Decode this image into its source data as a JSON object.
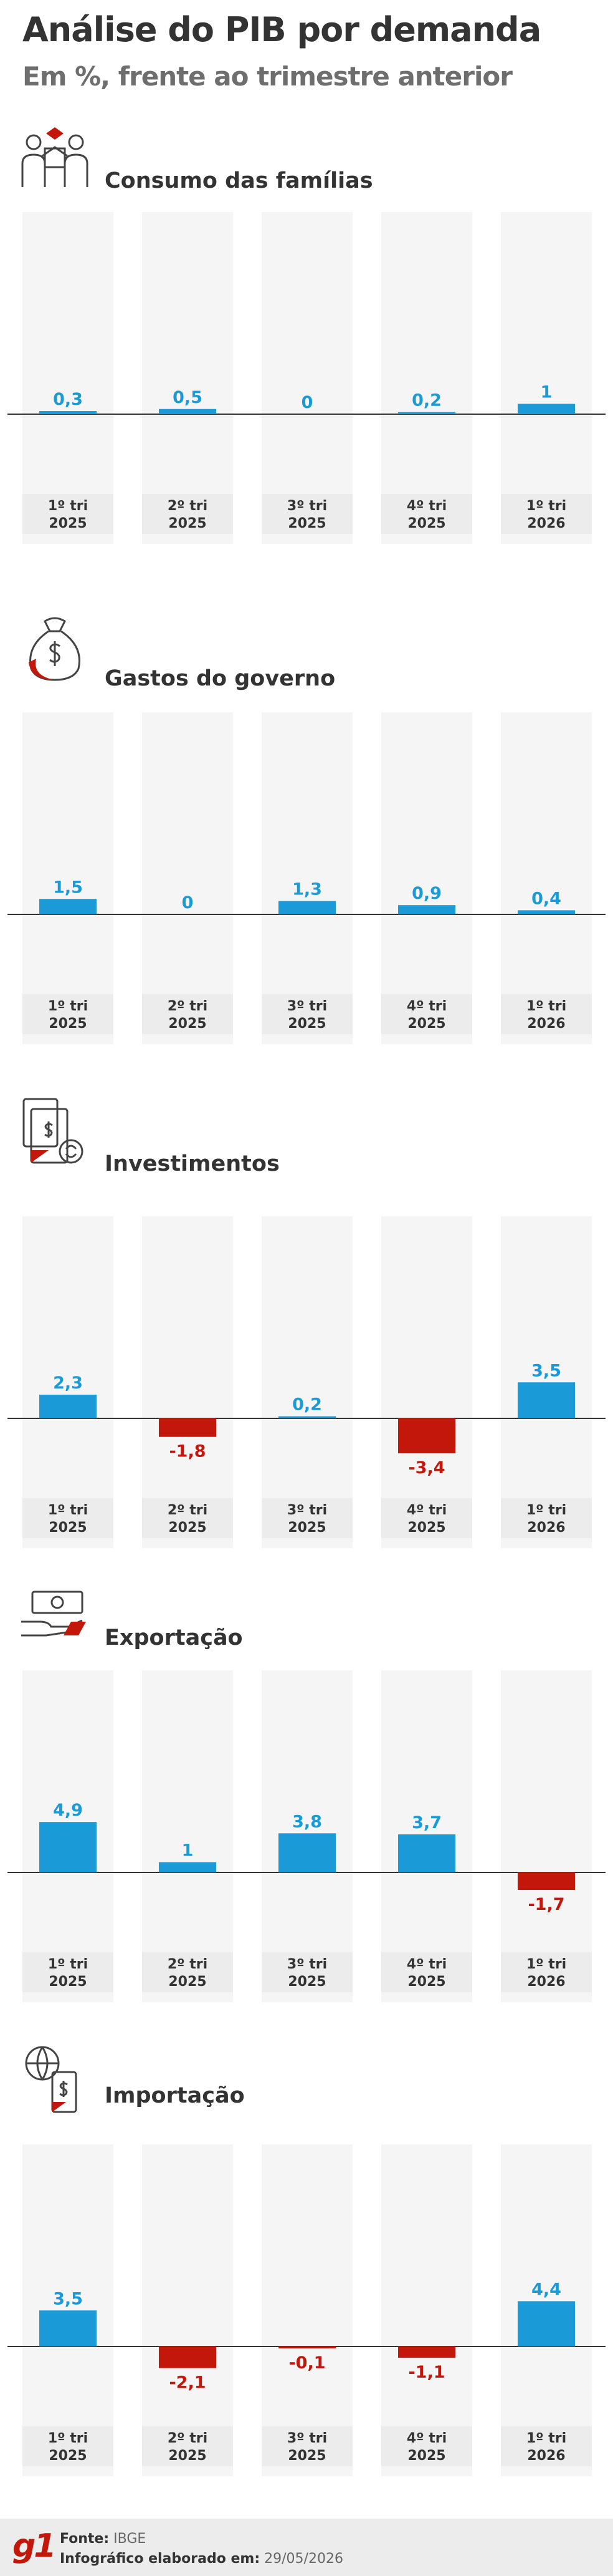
{
  "header": {
    "title": "Análise do PIB por demanda",
    "subtitle": "Em %, frente ao trimestre anterior"
  },
  "colors": {
    "positive": "#1a9ad6",
    "negative": "#c4170c",
    "column_bg": "#f5f5f5",
    "label_bg": "#ececec",
    "text": "#333333"
  },
  "footer": {
    "brand": "g1",
    "source_label": "Fonte:",
    "source_value": "IBGE",
    "date_label": "Infográfico elaborado em:",
    "date_value": "29/05/2026"
  },
  "chart_data": [
    {
      "type": "bar",
      "title": "Consumo das famílias",
      "icon": "family-consumption-icon",
      "categories": [
        "1º tri 2025",
        "2º tri 2025",
        "3º tri 2025",
        "4º tri 2025",
        "1º tri 2026"
      ],
      "category_lines": [
        [
          "1º tri",
          "2025"
        ],
        [
          "2º tri",
          "2025"
        ],
        [
          "3º tri",
          "2025"
        ],
        [
          "4º tri",
          "2025"
        ],
        [
          "1º tri",
          "2026"
        ]
      ],
      "values": [
        0.3,
        0.5,
        0,
        0.2,
        1
      ],
      "value_labels": [
        "0,3",
        "0,5",
        "0",
        "0,2",
        "1"
      ]
    },
    {
      "type": "bar",
      "title": "Gastos do governo",
      "icon": "money-bag-icon",
      "categories": [
        "1º tri 2025",
        "2º tri 2025",
        "3º tri 2025",
        "4º tri 2025",
        "1º tri 2026"
      ],
      "category_lines": [
        [
          "1º tri",
          "2025"
        ],
        [
          "2º tri",
          "2025"
        ],
        [
          "3º tri",
          "2025"
        ],
        [
          "4º tri",
          "2025"
        ],
        [
          "1º tri",
          "2026"
        ]
      ],
      "values": [
        1.5,
        0,
        1.3,
        0.9,
        0.4
      ],
      "value_labels": [
        "1,5",
        "0",
        "1,3",
        "0,9",
        "0,4"
      ]
    },
    {
      "type": "bar",
      "title": "Investimentos",
      "icon": "investment-icon",
      "categories": [
        "1º tri 2025",
        "2º tri 2025",
        "3º tri 2025",
        "4º tri 2025",
        "1º tri 2026"
      ],
      "category_lines": [
        [
          "1º tri",
          "2025"
        ],
        [
          "2º tri",
          "2025"
        ],
        [
          "3º tri",
          "2025"
        ],
        [
          "4º tri",
          "2025"
        ],
        [
          "1º tri",
          "2026"
        ]
      ],
      "values": [
        2.3,
        -1.8,
        0.2,
        -3.4,
        3.5
      ],
      "value_labels": [
        "2,3",
        "-1,8",
        "0,2",
        "-3,4",
        "3,5"
      ]
    },
    {
      "type": "bar",
      "title": "Exportação",
      "icon": "export-icon",
      "categories": [
        "1º tri 2025",
        "2º tri 2025",
        "3º tri 2025",
        "4º tri 2025",
        "1º tri 2026"
      ],
      "category_lines": [
        [
          "1º tri",
          "2025"
        ],
        [
          "2º tri",
          "2025"
        ],
        [
          "3º tri",
          "2025"
        ],
        [
          "4º tri",
          "2025"
        ],
        [
          "1º tri",
          "2026"
        ]
      ],
      "values": [
        4.9,
        1,
        3.8,
        3.7,
        -1.7
      ],
      "value_labels": [
        "4,9",
        "1",
        "3,8",
        "3,7",
        "-1,7"
      ]
    },
    {
      "type": "bar",
      "title": "Importação",
      "icon": "import-icon",
      "categories": [
        "1º tri 2025",
        "2º tri 2025",
        "3º tri 2025",
        "4º tri 2025",
        "1º tri 2026"
      ],
      "category_lines": [
        [
          "1º tri",
          "2025"
        ],
        [
          "2º tri",
          "2025"
        ],
        [
          "3º tri",
          "2025"
        ],
        [
          "4º tri",
          "2025"
        ],
        [
          "1º tri",
          "2026"
        ]
      ],
      "values": [
        3.5,
        -2.1,
        -0.1,
        -1.1,
        4.4
      ],
      "value_labels": [
        "3,5",
        "-2,1",
        "-0,1",
        "-1,1",
        "4,4"
      ]
    }
  ]
}
